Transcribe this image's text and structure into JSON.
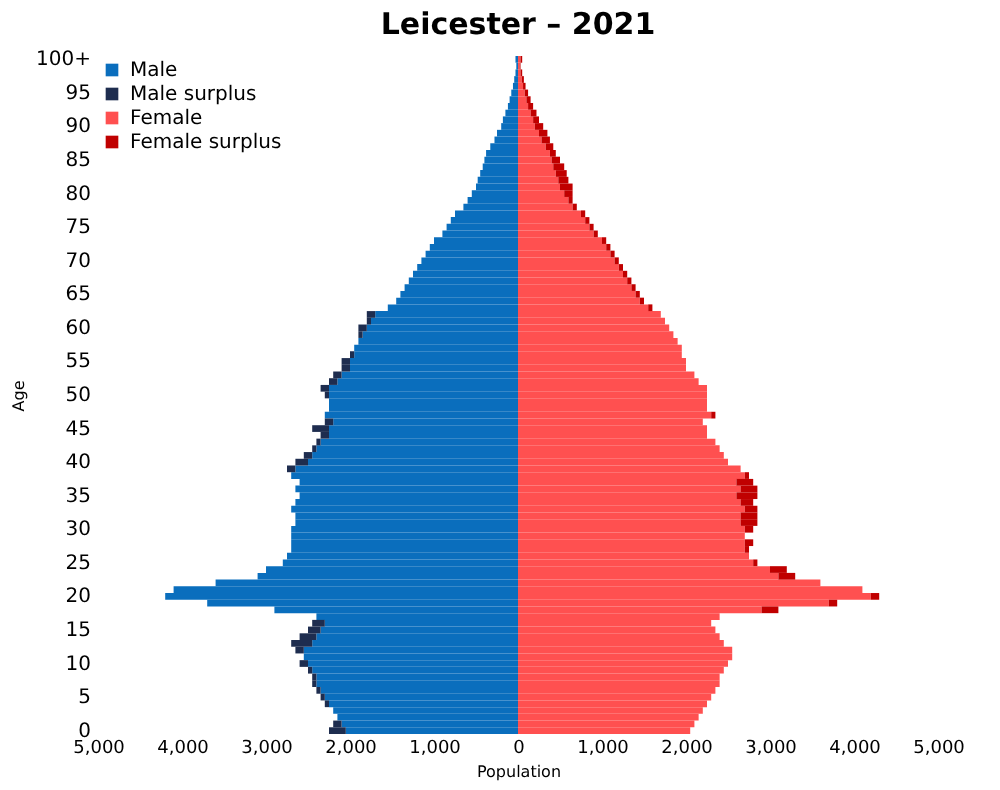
{
  "chart_data": {
    "type": "bar",
    "orientation": "horizontal",
    "stacked": true,
    "title": "Leicester – 2021",
    "xlabel": "Population",
    "ylabel": "Age",
    "categories": [
      "100+",
      null,
      null,
      null,
      null,
      "95",
      null,
      null,
      null,
      null,
      "90",
      null,
      null,
      null,
      null,
      "85",
      null,
      null,
      null,
      null,
      "80",
      null,
      null,
      null,
      null,
      "75",
      null,
      null,
      null,
      null,
      "70",
      null,
      null,
      null,
      null,
      "65",
      null,
      null,
      null,
      null,
      "60",
      null,
      null,
      null,
      null,
      "55",
      null,
      null,
      null,
      null,
      "50",
      null,
      null,
      null,
      null,
      "45",
      null,
      null,
      null,
      null,
      "40",
      null,
      null,
      null,
      null,
      "35",
      null,
      null,
      null,
      null,
      "30",
      null,
      null,
      null,
      null,
      "25",
      null,
      null,
      null,
      null,
      "20",
      null,
      null,
      null,
      null,
      "15",
      null,
      null,
      null,
      null,
      "10",
      null,
      null,
      null,
      null,
      "5",
      null,
      null,
      null,
      null,
      "0"
    ],
    "series": [
      {
        "name": "Male",
        "color": "#0a6ebd",
        "values": [
          -30,
          -20,
          -30,
          -45,
          -60,
          -80,
          -100,
          -120,
          -150,
          -180,
          -200,
          -250,
          -280,
          -330,
          -380,
          -400,
          -420,
          -450,
          -480,
          -500,
          -550,
          -600,
          -650,
          -750,
          -800,
          -850,
          -900,
          -1000,
          -1050,
          -1100,
          -1150,
          -1200,
          -1250,
          -1300,
          -1350,
          -1400,
          -1450,
          -1550,
          -1700,
          -1750,
          -1800,
          -1850,
          -1900,
          -1950,
          -1950,
          -2000,
          -2000,
          -2100,
          -2150,
          -2250,
          -2250,
          -2250,
          -2250,
          -2300,
          -2200,
          -2250,
          -2250,
          -2350,
          -2400,
          -2450,
          -2500,
          -2650,
          -2700,
          -2600,
          -2650,
          -2600,
          -2650,
          -2700,
          -2650,
          -2650,
          -2700,
          -2700,
          -2700,
          -2700,
          -2750,
          -2800,
          -3000,
          -3100,
          -3600,
          -4100,
          -4200,
          -3700,
          -2900,
          -2400,
          -2300,
          -2350,
          -2400,
          -2450,
          -2550,
          -2550,
          -2500,
          -2450,
          -2400,
          -2400,
          -2350,
          -2300,
          -2250,
          -2200,
          -2150,
          -2100,
          -2050
        ]
      },
      {
        "name": "Male surplus",
        "color": "#1e2d4f",
        "values": [
          0,
          0,
          0,
          0,
          0,
          0,
          0,
          0,
          0,
          0,
          0,
          0,
          0,
          0,
          0,
          0,
          0,
          0,
          0,
          0,
          0,
          0,
          0,
          0,
          0,
          0,
          0,
          0,
          0,
          0,
          0,
          0,
          0,
          0,
          0,
          0,
          0,
          0,
          -100,
          -50,
          -100,
          -50,
          0,
          0,
          -50,
          -100,
          -100,
          -100,
          -100,
          -100,
          -50,
          0,
          0,
          0,
          -100,
          -200,
          -100,
          -50,
          -50,
          -100,
          -150,
          -100,
          0,
          0,
          0,
          0,
          0,
          0,
          0,
          0,
          0,
          0,
          0,
          0,
          0,
          0,
          0,
          0,
          0,
          0,
          0,
          0,
          0,
          0,
          -150,
          -150,
          -200,
          -250,
          -100,
          0,
          -100,
          -50,
          -50,
          -50,
          -50,
          -50,
          -50,
          0,
          0,
          -100,
          -200
        ]
      },
      {
        "name": "Female",
        "color": "#ff5050",
        "values": [
          30,
          20,
          30,
          45,
          60,
          80,
          100,
          120,
          150,
          180,
          200,
          250,
          280,
          330,
          380,
          400,
          420,
          450,
          480,
          500,
          550,
          600,
          650,
          750,
          800,
          850,
          900,
          1000,
          1050,
          1100,
          1150,
          1200,
          1250,
          1300,
          1350,
          1400,
          1450,
          1550,
          1700,
          1750,
          1800,
          1850,
          1900,
          1950,
          1950,
          2000,
          2000,
          2100,
          2150,
          2250,
          2250,
          2250,
          2250,
          2300,
          2200,
          2250,
          2250,
          2350,
          2400,
          2450,
          2500,
          2650,
          2700,
          2600,
          2650,
          2600,
          2650,
          2700,
          2650,
          2650,
          2700,
          2700,
          2700,
          2700,
          2750,
          2800,
          3000,
          3100,
          3600,
          4100,
          4200,
          3700,
          2900,
          2400,
          2300,
          2350,
          2400,
          2450,
          2550,
          2550,
          2500,
          2450,
          2400,
          2400,
          2350,
          2300,
          2250,
          2200,
          2150,
          2100,
          2050
        ]
      },
      {
        "name": "Female surplus",
        "color": "#c00000",
        "values": [
          20,
          10,
          20,
          25,
          30,
          40,
          50,
          60,
          70,
          70,
          100,
          100,
          100,
          90,
          70,
          100,
          130,
          130,
          120,
          150,
          100,
          50,
          50,
          50,
          50,
          50,
          50,
          50,
          50,
          50,
          50,
          50,
          50,
          50,
          50,
          50,
          50,
          50,
          0,
          0,
          0,
          0,
          0,
          0,
          0,
          0,
          0,
          0,
          0,
          0,
          0,
          0,
          0,
          50,
          0,
          0,
          0,
          0,
          0,
          0,
          0,
          0,
          50,
          200,
          200,
          250,
          150,
          150,
          200,
          200,
          100,
          0,
          100,
          50,
          0,
          50,
          200,
          200,
          0,
          0,
          100,
          100,
          200,
          0,
          0,
          0,
          0,
          0,
          0,
          0,
          0,
          0,
          0,
          0,
          0,
          0,
          0,
          0,
          0,
          0,
          0
        ]
      }
    ],
    "xlim": [
      -5000,
      5000
    ],
    "xticks": [
      {
        "value": -5000,
        "label": "5,000"
      },
      {
        "value": -4000,
        "label": "4,000"
      },
      {
        "value": -3000,
        "label": "3,000"
      },
      {
        "value": -2000,
        "label": "2,000"
      },
      {
        "value": -1000,
        "label": "1,000"
      },
      0,
      {
        "value": 1000,
        "label": "1,000"
      },
      {
        "value": 2000,
        "label": "2,000"
      },
      {
        "value": 3000,
        "label": "3,000"
      },
      {
        "value": 4000,
        "label": "4,000"
      },
      {
        "value": 5000,
        "label": "5,000"
      }
    ],
    "legend": "top left",
    "grid": false
  }
}
